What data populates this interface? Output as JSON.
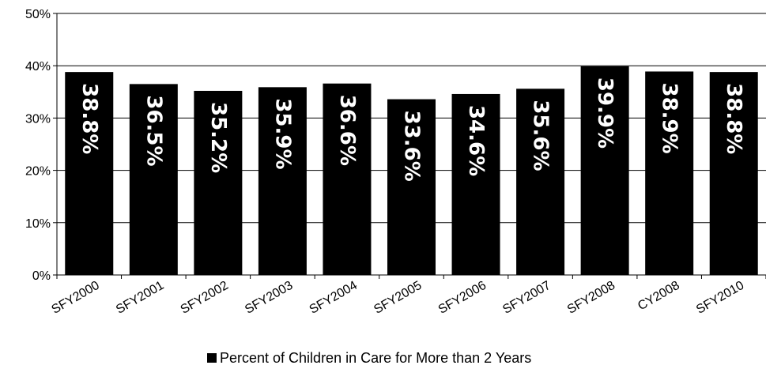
{
  "chart_data": {
    "type": "bar",
    "categories": [
      "SFY2000",
      "SFY2001",
      "SFY2002",
      "SFY2003",
      "SFY2004",
      "SFY2005",
      "SFY2006",
      "SFY2007",
      "SFY2008",
      "CY2008",
      "SFY2010"
    ],
    "series": [
      {
        "name": "Percent of Children in Care for More than 2 Years",
        "values": [
          38.8,
          36.5,
          35.2,
          35.9,
          36.6,
          33.6,
          34.6,
          35.6,
          39.9,
          38.9,
          38.8
        ],
        "labels": [
          "38.8%",
          "36.5%",
          "35.2%",
          "35.9%",
          "36.6%",
          "33.6%",
          "34.6%",
          "35.6%",
          "39.9%",
          "38.9%",
          "38.8%"
        ],
        "color": "#000000"
      }
    ],
    "ylim": [
      0,
      50
    ],
    "yticks": [
      "0%",
      "10%",
      "20%",
      "30%",
      "40%",
      "50%"
    ],
    "ytick_values": [
      0,
      10,
      20,
      30,
      40,
      50
    ],
    "grid": true,
    "legend_position": "bottom",
    "title": "",
    "xlabel": "",
    "ylabel": ""
  }
}
